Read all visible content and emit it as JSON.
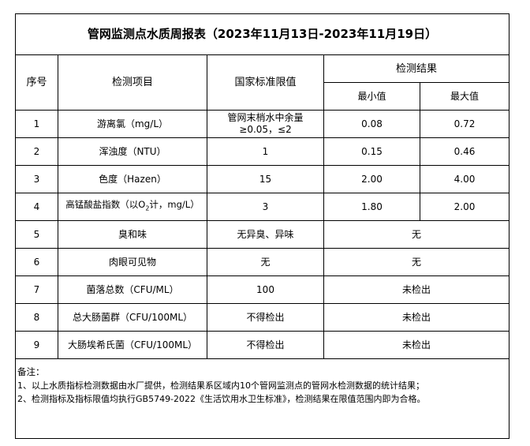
{
  "title": "管网监测点水质周报表（2023年11月13日-2023年11月19日）",
  "headers": {
    "seq": "序号",
    "item": "检测项目",
    "standard": "国家标准限值",
    "result": "检测结果",
    "min": "最小值",
    "max": "最大值"
  },
  "rows": [
    {
      "seq": "1",
      "item": "游离氯（mg/L）",
      "standard": "管网末梢水中余量≥0.05，≤2",
      "min": "0.08",
      "max": "0.72"
    },
    {
      "seq": "2",
      "item": "浑浊度（NTU）",
      "standard": "1",
      "min": "0.15",
      "max": "0.46"
    },
    {
      "seq": "3",
      "item": "色度（Hazen）",
      "standard": "15",
      "min": "2.00",
      "max": "4.00"
    },
    {
      "seq": "4",
      "item_pre": "高锰酸盐指数（以O",
      "item_sub": "2",
      "item_post": "计，mg/L）",
      "standard": "3",
      "min": "1.80",
      "max": "2.00"
    },
    {
      "seq": "5",
      "item": "臭和味",
      "standard": "无异臭、异味",
      "result": "无"
    },
    {
      "seq": "6",
      "item": "肉眼可见物",
      "standard": "无",
      "result": "无"
    },
    {
      "seq": "7",
      "item": "菌落总数（CFU/ML）",
      "standard": "100",
      "result": "未检出"
    },
    {
      "seq": "8",
      "item": "总大肠菌群（CFU/100ML）",
      "standard": "不得检出",
      "result": "未检出"
    },
    {
      "seq": "9",
      "item": "大肠埃希氏菌（CFU/100ML）",
      "standard": "不得检出",
      "result": "未检出"
    }
  ],
  "notes": {
    "label": "备注：",
    "line1": "1、以上水质指标检测数据由水厂提供，检测结果系区域内10个管网监测点的管网水检测数据的统计结果；",
    "line2": "2、检测指标及指标限值均执行GB5749-2022《生活饮用水卫生标准》，检测结果在限值范围内即为合格。"
  }
}
